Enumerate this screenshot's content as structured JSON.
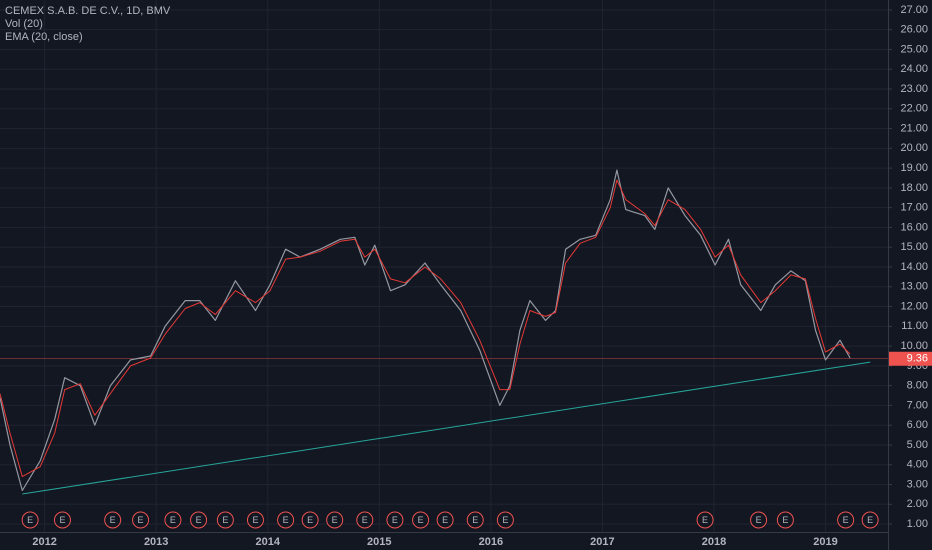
{
  "chart_data": {
    "type": "line",
    "title": "CEMEX S.A.B. DE C.V., 1D, BMV",
    "indicators": [
      "Vol (20)",
      "EMA (20, close)"
    ],
    "x": [
      2011.6,
      2011.69,
      2011.8,
      2011.96,
      2012.09,
      2012.18,
      2012.32,
      2012.45,
      2012.59,
      2012.77,
      2012.95,
      2013.08,
      2013.26,
      2013.39,
      2013.53,
      2013.71,
      2013.89,
      2014.02,
      2014.16,
      2014.29,
      2014.47,
      2014.65,
      2014.78,
      2014.87,
      2014.96,
      2015.1,
      2015.23,
      2015.41,
      2015.55,
      2015.73,
      2015.9,
      2016.08,
      2016.17,
      2016.26,
      2016.35,
      2016.49,
      2016.58,
      2016.67,
      2016.8,
      2016.94,
      2017.07,
      2017.13,
      2017.21,
      2017.38,
      2017.47,
      2017.59,
      2017.74,
      2017.88,
      2018.01,
      2018.13,
      2018.24,
      2018.42,
      2018.55,
      2018.69,
      2018.82,
      2018.91,
      2019.0,
      2019.13,
      2019.22
    ],
    "series": [
      {
        "color": "#9598a1",
        "values": [
          7.4,
          5.0,
          2.7,
          4.2,
          6.3,
          8.4,
          8.0,
          6.0,
          8.0,
          9.3,
          9.5,
          11.0,
          12.3,
          12.3,
          11.3,
          13.3,
          11.8,
          13.1,
          14.9,
          14.5,
          14.9,
          15.4,
          15.5,
          14.1,
          15.1,
          12.8,
          13.1,
          14.2,
          13.1,
          11.8,
          9.8,
          7.0,
          8.0,
          10.8,
          12.3,
          11.3,
          11.8,
          14.9,
          15.4,
          15.6,
          17.4,
          18.9,
          16.9,
          16.6,
          15.9,
          18.0,
          16.6,
          15.6,
          14.1,
          15.4,
          13.1,
          11.8,
          13.1,
          13.8,
          13.3,
          10.8,
          9.3,
          10.3,
          9.4
        ]
      },
      {
        "color": "#e53935",
        "values": [
          7.6,
          5.6,
          3.4,
          3.9,
          5.6,
          7.8,
          8.1,
          6.5,
          7.6,
          9.0,
          9.4,
          10.6,
          11.9,
          12.2,
          11.6,
          12.8,
          12.2,
          12.8,
          14.4,
          14.5,
          14.8,
          15.3,
          15.4,
          14.5,
          14.9,
          13.4,
          13.2,
          14.0,
          13.4,
          12.2,
          10.3,
          7.8,
          7.8,
          10.1,
          11.8,
          11.5,
          11.7,
          14.2,
          15.2,
          15.5,
          17.0,
          18.4,
          17.4,
          16.7,
          16.1,
          17.4,
          16.9,
          15.9,
          14.5,
          15.1,
          13.6,
          12.2,
          12.8,
          13.6,
          13.4,
          11.4,
          9.7,
          10.1,
          9.6
        ]
      }
    ],
    "trendline": {
      "color": "#26a69a",
      "x": [
        2011.8,
        2019.4
      ],
      "values": [
        2.52,
        9.19
      ]
    },
    "last_price": 9.36,
    "last_price_color": "#ef5350",
    "events": {
      "label": "E",
      "color": "#ef5350",
      "x": [
        2011.87,
        2012.16,
        2012.61,
        2012.86,
        2013.15,
        2013.38,
        2013.62,
        2013.89,
        2014.16,
        2014.38,
        2014.6,
        2014.87,
        2015.14,
        2015.37,
        2015.59,
        2015.86,
        2016.13,
        2017.92,
        2018.4,
        2018.64,
        2019.18,
        2019.4
      ]
    },
    "xlim": [
      2011.6,
      2019.56
    ],
    "xticks": [
      2012,
      2013,
      2014,
      2015,
      2016,
      2017,
      2018,
      2019
    ],
    "ylim": [
      0.6,
      27.5
    ],
    "yticks": [
      {
        "value": 1,
        "label": "1.00"
      },
      {
        "value": 2,
        "label": "2.00"
      },
      {
        "value": 3,
        "label": "3.00"
      },
      {
        "value": 4,
        "label": "4.00"
      },
      {
        "value": 5,
        "label": "5.00"
      },
      {
        "value": 6,
        "label": "6.00"
      },
      {
        "value": 7,
        "label": "7.00"
      },
      {
        "value": 8,
        "label": "8.00"
      },
      {
        "value": 9,
        "label": "9.00"
      },
      {
        "value": 10,
        "label": "10.00"
      },
      {
        "value": 11,
        "label": "11.00"
      },
      {
        "value": 12,
        "label": "12.00"
      },
      {
        "value": 13,
        "label": "13.00"
      },
      {
        "value": 14,
        "label": "14.00"
      },
      {
        "value": 15,
        "label": "15.00"
      },
      {
        "value": 16,
        "label": "16.00"
      },
      {
        "value": 17,
        "label": "17.00"
      },
      {
        "value": 18,
        "label": "18.00"
      },
      {
        "value": 19,
        "label": "19.00"
      },
      {
        "value": 20,
        "label": "20.00"
      },
      {
        "value": 21,
        "label": "21.00"
      },
      {
        "value": 22,
        "label": "22.00"
      },
      {
        "value": 23,
        "label": "23.00"
      },
      {
        "value": 24,
        "label": "24.00"
      },
      {
        "value": 25,
        "label": "25.00"
      },
      {
        "value": 26,
        "label": "26.00"
      },
      {
        "value": 27,
        "label": "27.00"
      }
    ],
    "grid": true
  }
}
